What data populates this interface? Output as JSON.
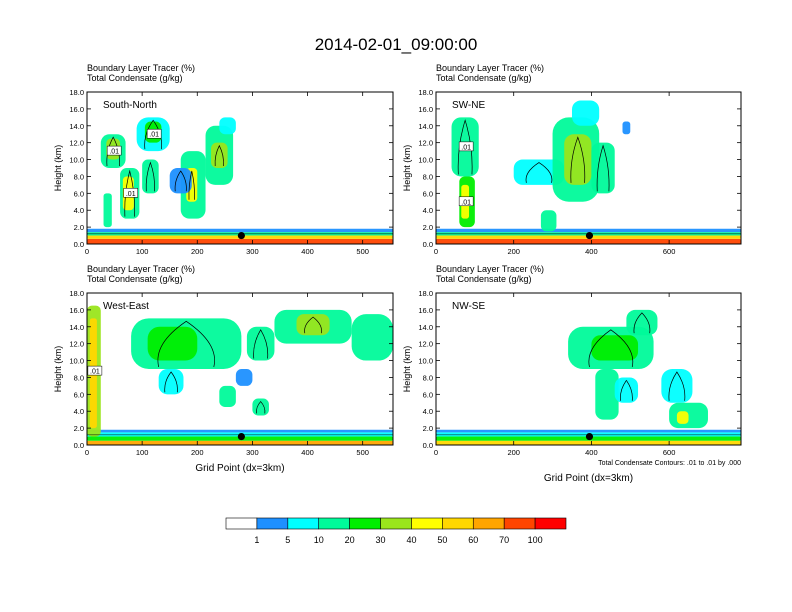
{
  "title": "2014-02-01_09:00:00",
  "colors": {
    "levels": [
      "#ffffff",
      "#1e90ff",
      "#00ffff",
      "#00fa9a",
      "#00ee00",
      "#9ae51c",
      "#ffff00",
      "#ffd700",
      "#ffa500",
      "#ff4500",
      "#ff0000"
    ],
    "frame": "#000000"
  },
  "chart_data": [
    {
      "type": "heatmap",
      "header_line1": "Boundary Layer Tracer   (%)",
      "header_line2": "Total Condensate   (g/kg)",
      "panel_label": "South-North",
      "ylabel": "Height (km)",
      "xlabel": "",
      "xlim": [
        0,
        555
      ],
      "ylim": [
        0,
        18
      ],
      "xticks": [
        0,
        100,
        200,
        300,
        400,
        500
      ],
      "yticks": [
        "0.0",
        "2.0",
        "4.0",
        "6.0",
        "8.0",
        "10.0",
        "12.0",
        "14.0",
        "16.0",
        "18.0"
      ],
      "contour_labels": [
        ".01",
        ".01",
        ".01"
      ],
      "marker": {
        "x": 280,
        "y": 1.0
      },
      "cells": [
        {
          "x0": 0,
          "x1": 555,
          "y0": 0,
          "y1": 0.6,
          "level": 9
        },
        {
          "x0": 0,
          "x1": 555,
          "y0": 0.6,
          "y1": 1.0,
          "level": 7
        },
        {
          "x0": 0,
          "x1": 555,
          "y0": 1.0,
          "y1": 1.4,
          "level": 3
        },
        {
          "x0": 0,
          "x1": 555,
          "y0": 1.4,
          "y1": 1.8,
          "level": 1
        },
        {
          "x0": 25,
          "x1": 70,
          "y0": 9,
          "y1": 13,
          "level": 3
        },
        {
          "x0": 35,
          "x1": 60,
          "y0": 10,
          "y1": 12.5,
          "level": 5
        },
        {
          "x0": 60,
          "x1": 95,
          "y0": 3,
          "y1": 9,
          "level": 3
        },
        {
          "x0": 65,
          "x1": 85,
          "y0": 4,
          "y1": 8,
          "level": 6
        },
        {
          "x0": 90,
          "x1": 150,
          "y0": 11,
          "y1": 15,
          "level": 2
        },
        {
          "x0": 105,
          "x1": 135,
          "y0": 12,
          "y1": 14.5,
          "level": 4
        },
        {
          "x0": 100,
          "x1": 130,
          "y0": 6,
          "y1": 10,
          "level": 3
        },
        {
          "x0": 170,
          "x1": 215,
          "y0": 3,
          "y1": 11,
          "level": 3
        },
        {
          "x0": 180,
          "x1": 200,
          "y0": 5,
          "y1": 9,
          "level": 6
        },
        {
          "x0": 215,
          "x1": 265,
          "y0": 7,
          "y1": 14,
          "level": 3
        },
        {
          "x0": 225,
          "x1": 255,
          "y0": 9,
          "y1": 12,
          "level": 5
        },
        {
          "x0": 240,
          "x1": 270,
          "y0": 13,
          "y1": 15,
          "level": 2
        },
        {
          "x0": 150,
          "x1": 190,
          "y0": 6,
          "y1": 9,
          "level": 1
        },
        {
          "x0": 30,
          "x1": 45,
          "y0": 2,
          "y1": 6,
          "level": 3
        }
      ]
    },
    {
      "type": "heatmap",
      "header_line1": "Boundary Layer Tracer   (%)",
      "header_line2": "Total Condensate   (g/kg)",
      "panel_label": "SW-NE",
      "ylabel": "Height (km)",
      "xlabel": "",
      "xlim": [
        0,
        785
      ],
      "ylim": [
        0,
        18
      ],
      "xticks": [
        0,
        200,
        400,
        600
      ],
      "yticks": [
        "0.0",
        "2.0",
        "4.0",
        "6.0",
        "8.0",
        "10.0",
        "12.0",
        "14.0",
        "16.0",
        "18.0"
      ],
      "contour_labels": [
        ".01",
        ".01"
      ],
      "marker": {
        "x": 395,
        "y": 1.0
      },
      "cells": [
        {
          "x0": 0,
          "x1": 785,
          "y0": 0,
          "y1": 0.6,
          "level": 9
        },
        {
          "x0": 0,
          "x1": 785,
          "y0": 0.6,
          "y1": 1.0,
          "level": 7
        },
        {
          "x0": 0,
          "x1": 785,
          "y0": 1.0,
          "y1": 1.4,
          "level": 3
        },
        {
          "x0": 0,
          "x1": 785,
          "y0": 1.4,
          "y1": 1.8,
          "level": 1
        },
        {
          "x0": 40,
          "x1": 110,
          "y0": 8,
          "y1": 15,
          "level": 3
        },
        {
          "x0": 60,
          "x1": 100,
          "y0": 2,
          "y1": 8,
          "level": 4
        },
        {
          "x0": 65,
          "x1": 85,
          "y0": 3,
          "y1": 7,
          "level": 6
        },
        {
          "x0": 200,
          "x1": 330,
          "y0": 7,
          "y1": 10,
          "level": 2
        },
        {
          "x0": 300,
          "x1": 420,
          "y0": 5,
          "y1": 15,
          "level": 3
        },
        {
          "x0": 330,
          "x1": 400,
          "y0": 7,
          "y1": 13,
          "level": 5
        },
        {
          "x0": 350,
          "x1": 420,
          "y0": 14,
          "y1": 17,
          "level": 2
        },
        {
          "x0": 400,
          "x1": 460,
          "y0": 6,
          "y1": 12,
          "level": 3
        },
        {
          "x0": 270,
          "x1": 310,
          "y0": 1.5,
          "y1": 4,
          "level": 3
        },
        {
          "x0": 480,
          "x1": 500,
          "y0": 13,
          "y1": 14.5,
          "level": 1
        }
      ]
    },
    {
      "type": "heatmap",
      "header_line1": "Boundary Layer Tracer   (%)",
      "header_line2": "Total Condensate   (g/kg)",
      "panel_label": "West-East",
      "ylabel": "Height (km)",
      "xlabel": "Grid Point (dx=3km)",
      "xlim": [
        0,
        555
      ],
      "ylim": [
        0,
        18
      ],
      "xticks": [
        0,
        100,
        200,
        300,
        400,
        500
      ],
      "yticks": [
        "0.0",
        "2.0",
        "4.0",
        "6.0",
        "8.0",
        "10.0",
        "12.0",
        "14.0",
        "16.0",
        "18.0"
      ],
      "contour_labels": [
        ".01"
      ],
      "marker": {
        "x": 280,
        "y": 1.0
      },
      "cells": [
        {
          "x0": 0,
          "x1": 555,
          "y0": 0,
          "y1": 0.5,
          "level": 8
        },
        {
          "x0": 0,
          "x1": 555,
          "y0": 0.5,
          "y1": 1.0,
          "level": 4
        },
        {
          "x0": 0,
          "x1": 555,
          "y0": 1.0,
          "y1": 1.5,
          "level": 2
        },
        {
          "x0": 0,
          "x1": 555,
          "y0": 1.5,
          "y1": 1.8,
          "level": 1
        },
        {
          "x0": 0,
          "x1": 25,
          "y0": 1,
          "y1": 16.5,
          "level": 5
        },
        {
          "x0": 5,
          "x1": 18,
          "y0": 2,
          "y1": 15,
          "level": 7
        },
        {
          "x0": 80,
          "x1": 280,
          "y0": 9,
          "y1": 15,
          "level": 3
        },
        {
          "x0": 110,
          "x1": 200,
          "y0": 10,
          "y1": 14,
          "level": 4
        },
        {
          "x0": 290,
          "x1": 340,
          "y0": 10,
          "y1": 14,
          "level": 3
        },
        {
          "x0": 340,
          "x1": 480,
          "y0": 12,
          "y1": 16,
          "level": 3
        },
        {
          "x0": 380,
          "x1": 440,
          "y0": 13,
          "y1": 15.5,
          "level": 5
        },
        {
          "x0": 480,
          "x1": 555,
          "y0": 10,
          "y1": 15.5,
          "level": 3
        },
        {
          "x0": 130,
          "x1": 175,
          "y0": 6,
          "y1": 9,
          "level": 2
        },
        {
          "x0": 240,
          "x1": 270,
          "y0": 4.5,
          "y1": 7,
          "level": 3
        },
        {
          "x0": 300,
          "x1": 330,
          "y0": 3.5,
          "y1": 5.5,
          "level": 3
        },
        {
          "x0": 270,
          "x1": 300,
          "y0": 7,
          "y1": 9,
          "level": 1
        }
      ]
    },
    {
      "type": "heatmap",
      "header_line1": "Boundary Layer Tracer   (%)",
      "header_line2": "Total Condensate   (g/kg)",
      "panel_label": "NW-SE",
      "ylabel": "Height (km)",
      "xlabel": "Grid Point (dx=3km)",
      "xlim": [
        0,
        785
      ],
      "ylim": [
        0,
        18
      ],
      "xticks": [
        0,
        200,
        400,
        600
      ],
      "yticks": [
        "0.0",
        "2.0",
        "4.0",
        "6.0",
        "8.0",
        "10.0",
        "12.0",
        "14.0",
        "16.0",
        "18.0"
      ],
      "contour_labels": [],
      "contour_note": "Total Condensate Contours: .01 to .01 by .000",
      "marker": {
        "x": 395,
        "y": 1.0
      },
      "cells": [
        {
          "x0": 0,
          "x1": 785,
          "y0": 0,
          "y1": 0.5,
          "level": 7
        },
        {
          "x0": 0,
          "x1": 785,
          "y0": 0.5,
          "y1": 1.0,
          "level": 4
        },
        {
          "x0": 0,
          "x1": 785,
          "y0": 1.0,
          "y1": 1.5,
          "level": 2
        },
        {
          "x0": 0,
          "x1": 785,
          "y0": 1.5,
          "y1": 1.8,
          "level": 1
        },
        {
          "x0": 340,
          "x1": 560,
          "y0": 9,
          "y1": 14,
          "level": 3
        },
        {
          "x0": 400,
          "x1": 520,
          "y0": 10,
          "y1": 13,
          "level": 4
        },
        {
          "x0": 490,
          "x1": 570,
          "y0": 13,
          "y1": 16,
          "level": 3
        },
        {
          "x0": 410,
          "x1": 470,
          "y0": 3,
          "y1": 9,
          "level": 3
        },
        {
          "x0": 580,
          "x1": 660,
          "y0": 5,
          "y1": 9,
          "level": 2
        },
        {
          "x0": 600,
          "x1": 700,
          "y0": 2,
          "y1": 5,
          "level": 3
        },
        {
          "x0": 620,
          "x1": 650,
          "y0": 2.5,
          "y1": 4,
          "level": 6
        },
        {
          "x0": 460,
          "x1": 520,
          "y0": 5,
          "y1": 8,
          "level": 2
        }
      ]
    }
  ],
  "colorbar": {
    "labels": [
      "1",
      "5",
      "10",
      "20",
      "30",
      "40",
      "50",
      "60",
      "70",
      "100"
    ]
  }
}
